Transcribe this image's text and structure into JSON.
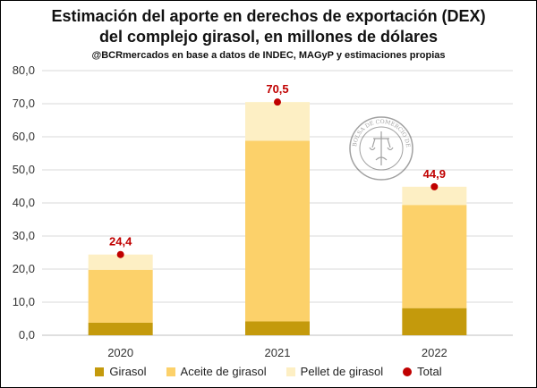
{
  "chart_data": {
    "type": "bar",
    "title_lines": [
      "Estimación del aporte en derechos de exportación (DEX)",
      "del complejo girasol, en millones de dólares"
    ],
    "subtitle": "@BCRmercados en base a datos de INDEC, MAGyP y estimaciones propias",
    "categories": [
      "2020",
      "2021",
      "2022"
    ],
    "ylim": [
      0,
      80
    ],
    "yticks": [
      "0,0",
      "10,0",
      "20,0",
      "30,0",
      "40,0",
      "50,0",
      "60,0",
      "70,0",
      "80,0"
    ],
    "grid": true,
    "stacked": true,
    "series": [
      {
        "name": "Girasol",
        "color": "#c49a0c",
        "values": [
          3.8,
          4.2,
          8.2
        ]
      },
      {
        "name": "Aceite de girasol",
        "color": "#fcd16a",
        "values": [
          16.0,
          54.6,
          31.2
        ]
      },
      {
        "name": "Pellet de girasol",
        "color": "#fdefc4",
        "values": [
          4.6,
          11.7,
          5.5
        ]
      }
    ],
    "total": {
      "name": "Total",
      "color": "#c00000",
      "values": [
        24.4,
        70.5,
        44.9
      ],
      "labels": [
        "24,4",
        "70,5",
        "44,9"
      ]
    },
    "legend_position": "bottom",
    "watermark": "BOLSA DE COMERCIO DE ROSARIO"
  }
}
